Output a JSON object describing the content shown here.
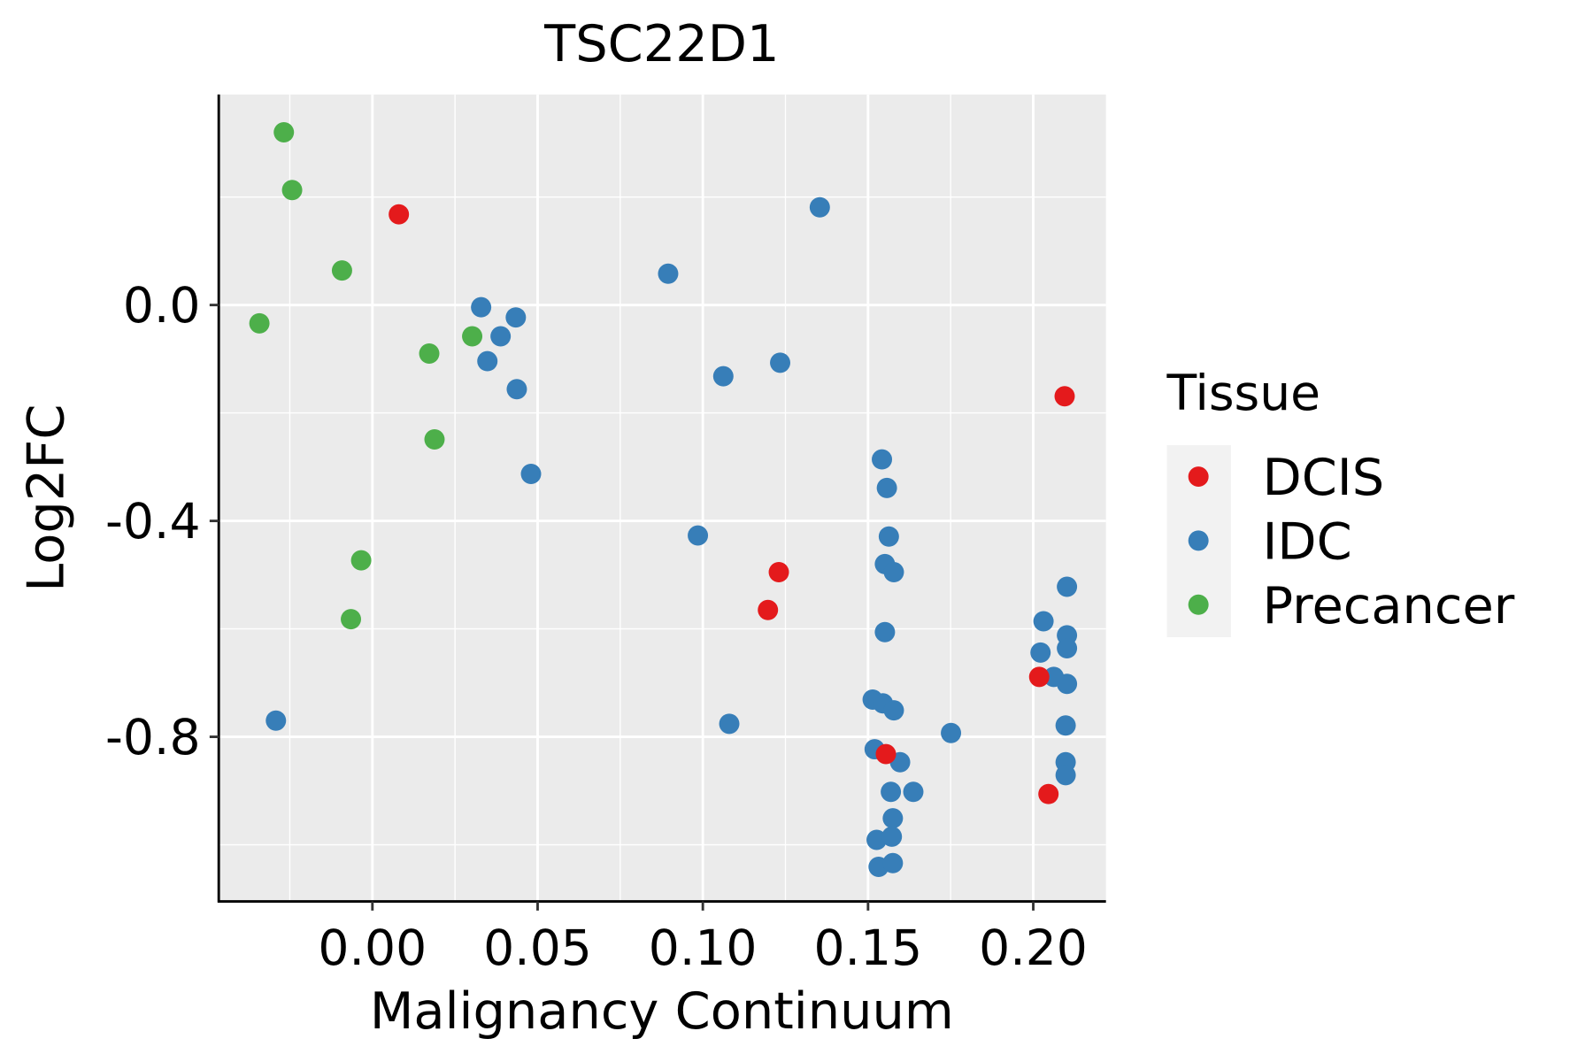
{
  "chart_data": {
    "type": "scatter",
    "title": "TSC22D1",
    "xlabel": "Malignancy Continuum",
    "ylabel": "Log2FC",
    "xlim": [
      -0.0465,
      0.222
    ],
    "ylim": [
      -1.105,
      0.39
    ],
    "x_ticks": [
      0.0,
      0.05,
      0.1,
      0.15,
      0.2
    ],
    "x_tick_labels": [
      "0.00",
      "0.05",
      "0.10",
      "0.15",
      "0.20"
    ],
    "y_ticks": [
      0.0,
      -0.4,
      -0.8
    ],
    "y_tick_labels": [
      "0.0",
      "-0.4",
      "-0.8"
    ],
    "grid": true,
    "legend": {
      "title": "Tissue",
      "placement": "right",
      "entries": [
        {
          "label": "DCIS",
          "color": "#E41A1C"
        },
        {
          "label": "IDC",
          "color": "#377EB8"
        },
        {
          "label": "Precancer",
          "color": "#4DAF4A"
        }
      ]
    },
    "series": [
      {
        "name": "Precancer",
        "color": "#4DAF4A",
        "points": [
          [
            -0.0268,
            0.32
          ],
          [
            -0.0243,
            0.213
          ],
          [
            -0.0092,
            0.064
          ],
          [
            -0.0342,
            -0.034
          ],
          [
            0.0172,
            -0.09
          ],
          [
            0.0302,
            -0.058
          ],
          [
            0.0188,
            -0.249
          ],
          [
            -0.0034,
            -0.473
          ],
          [
            -0.0065,
            -0.582
          ]
        ]
      },
      {
        "name": "IDC",
        "color": "#377EB8",
        "points": [
          [
            0.1354,
            0.181
          ],
          [
            0.0895,
            0.058
          ],
          [
            0.0329,
            -0.004
          ],
          [
            0.0434,
            -0.023
          ],
          [
            0.0388,
            -0.058
          ],
          [
            0.0348,
            -0.104
          ],
          [
            0.0437,
            -0.156
          ],
          [
            0.048,
            -0.313
          ],
          [
            0.1062,
            -0.132
          ],
          [
            0.1234,
            -0.107
          ],
          [
            0.0985,
            -0.427
          ],
          [
            0.108,
            -0.776
          ],
          [
            -0.0292,
            -0.77
          ],
          [
            0.1542,
            -0.286
          ],
          [
            0.1557,
            -0.339
          ],
          [
            0.1563,
            -0.429
          ],
          [
            0.1551,
            -0.48
          ],
          [
            0.1578,
            -0.495
          ],
          [
            0.1551,
            -0.606
          ],
          [
            0.1514,
            -0.731
          ],
          [
            0.1545,
            -0.738
          ],
          [
            0.1578,
            -0.751
          ],
          [
            0.1751,
            -0.793
          ],
          [
            0.152,
            -0.823
          ],
          [
            0.1597,
            -0.847
          ],
          [
            0.1569,
            -0.902
          ],
          [
            0.1637,
            -0.902
          ],
          [
            0.1575,
            -0.951
          ],
          [
            0.1526,
            -0.991
          ],
          [
            0.1572,
            -0.985
          ],
          [
            0.1532,
            -1.041
          ],
          [
            0.1575,
            -1.034
          ],
          [
            0.2102,
            -0.522
          ],
          [
            0.2031,
            -0.586
          ],
          [
            0.2102,
            -0.612
          ],
          [
            0.2022,
            -0.644
          ],
          [
            0.2102,
            -0.636
          ],
          [
            0.2062,
            -0.689
          ],
          [
            0.2102,
            -0.702
          ],
          [
            0.2098,
            -0.779
          ],
          [
            0.2098,
            -0.847
          ],
          [
            0.2098,
            -0.871
          ]
        ]
      },
      {
        "name": "DCIS",
        "color": "#E41A1C",
        "points": [
          [
            0.008,
            0.168
          ],
          [
            0.2095,
            -0.169
          ],
          [
            0.123,
            -0.495
          ],
          [
            0.1197,
            -0.565
          ],
          [
            0.2018,
            -0.689
          ],
          [
            0.1554,
            -0.832
          ],
          [
            0.2046,
            -0.906
          ]
        ]
      }
    ]
  }
}
